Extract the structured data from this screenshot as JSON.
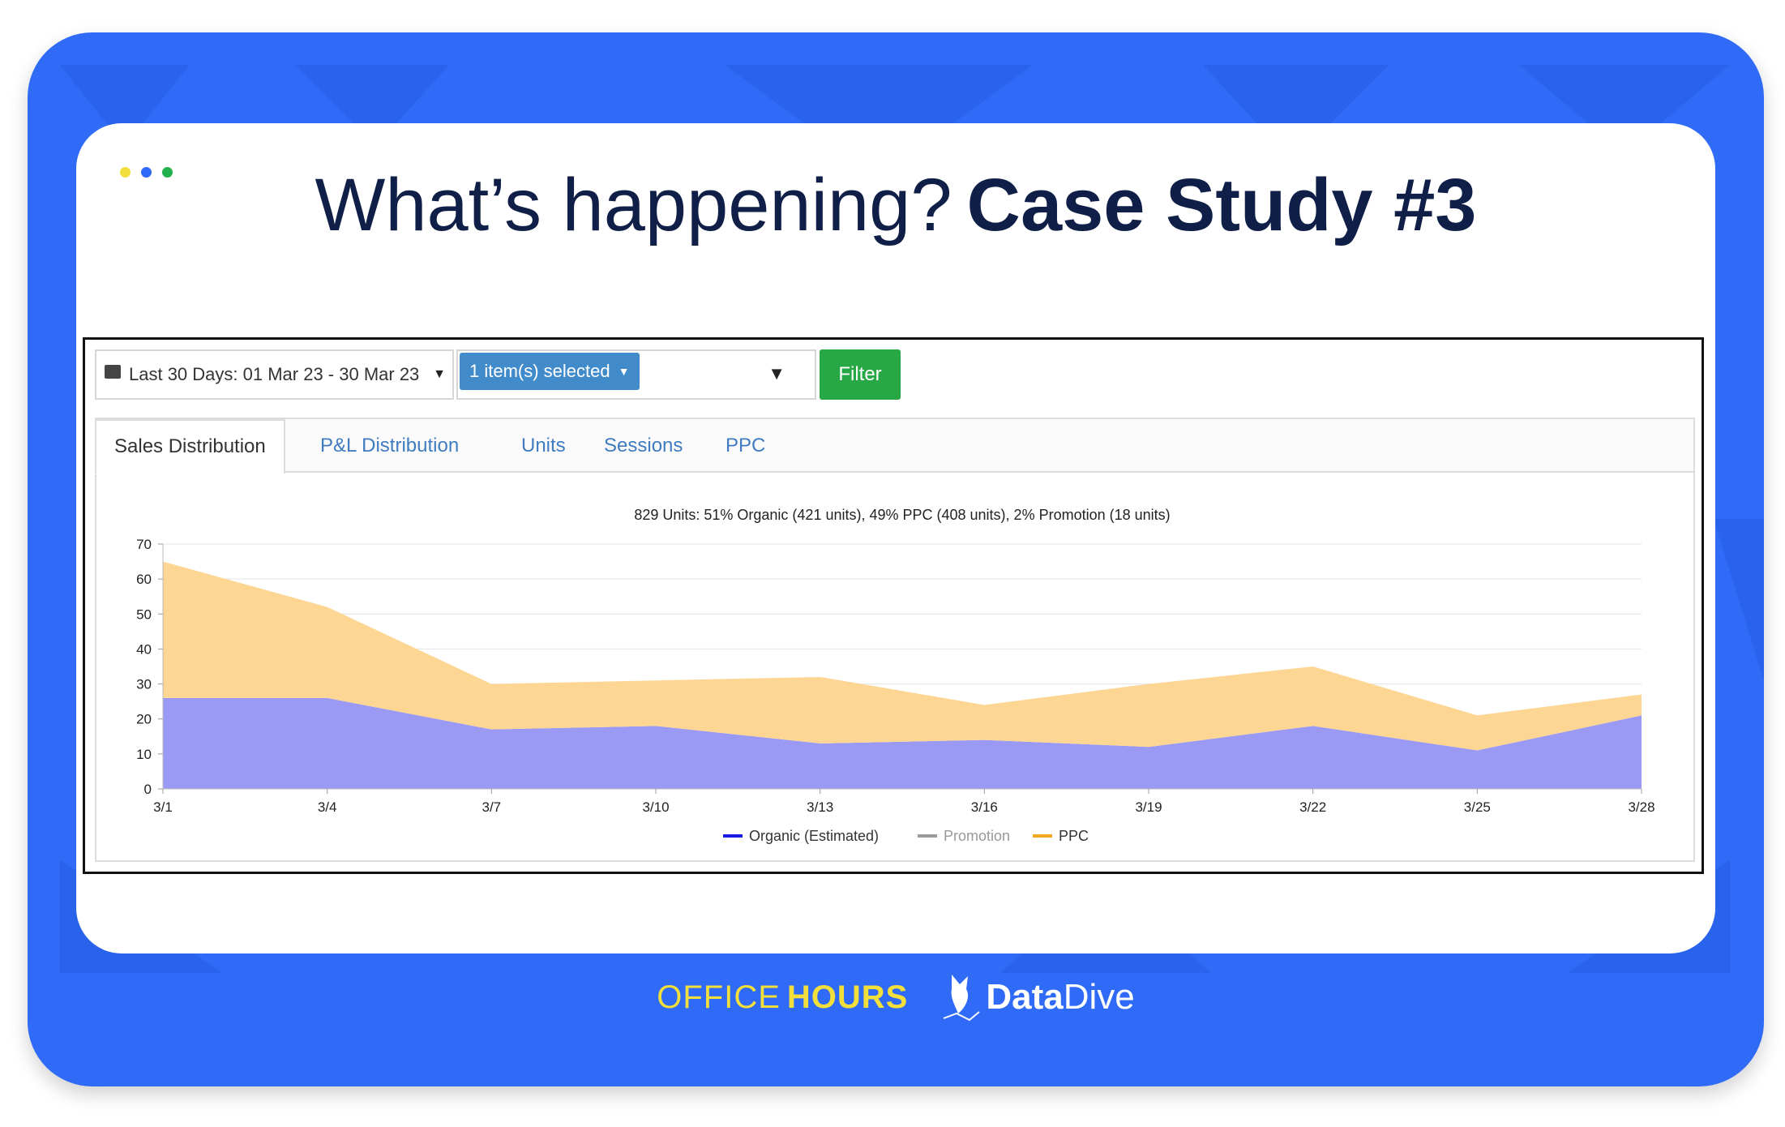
{
  "slide": {
    "title_light": "What’s happening?",
    "title_bold": "Case Study #3",
    "dot_colors": [
      "#f2df3b",
      "#2f6bf6",
      "#22b14c"
    ]
  },
  "toolbar": {
    "date_range": "Last 30 Days: 01 Mar 23 - 30 Mar 23",
    "multiselect_label": "1 item(s) selected",
    "filter_label": "Filter"
  },
  "tabs": [
    {
      "label": "Sales Distribution",
      "active": true
    },
    {
      "label": "P&L Distribution",
      "active": false
    },
    {
      "label": "Units",
      "active": false
    },
    {
      "label": "Sessions",
      "active": false
    },
    {
      "label": "PPC",
      "active": false
    }
  ],
  "chart_data": {
    "type": "area",
    "stacked": true,
    "title": "829 Units: 51% Organic (421 units), 49% PPC (408 units), 2% Promotion (18 units)",
    "categories": [
      "3/1",
      "3/4",
      "3/7",
      "3/10",
      "3/13",
      "3/16",
      "3/19",
      "3/22",
      "3/25",
      "3/28"
    ],
    "ylim": [
      0,
      70
    ],
    "yticks": [
      0,
      10,
      20,
      30,
      40,
      50,
      60,
      70
    ],
    "grid": true,
    "legend_position": "bottom",
    "series": [
      {
        "name": "Organic (Estimated)",
        "color": "#9a9af5",
        "line_color": "#1a1ae6",
        "values": [
          26,
          26,
          17,
          18,
          13,
          14,
          12,
          18,
          11,
          21
        ]
      },
      {
        "name": "Promotion",
        "color": "#bdbdbd",
        "line_color": "#999999",
        "values": [
          0,
          0,
          0,
          0,
          0,
          0,
          0,
          0,
          0,
          0
        ]
      },
      {
        "name": "PPC",
        "color": "#fdd693",
        "line_color": "#f5a623",
        "values": [
          39,
          26,
          13,
          13,
          19,
          10,
          18,
          17,
          10,
          6
        ]
      }
    ]
  },
  "footer": {
    "office": "OFFICE",
    "hours": "HOURS",
    "brand_data": "Data",
    "brand_dive": "Dive"
  }
}
